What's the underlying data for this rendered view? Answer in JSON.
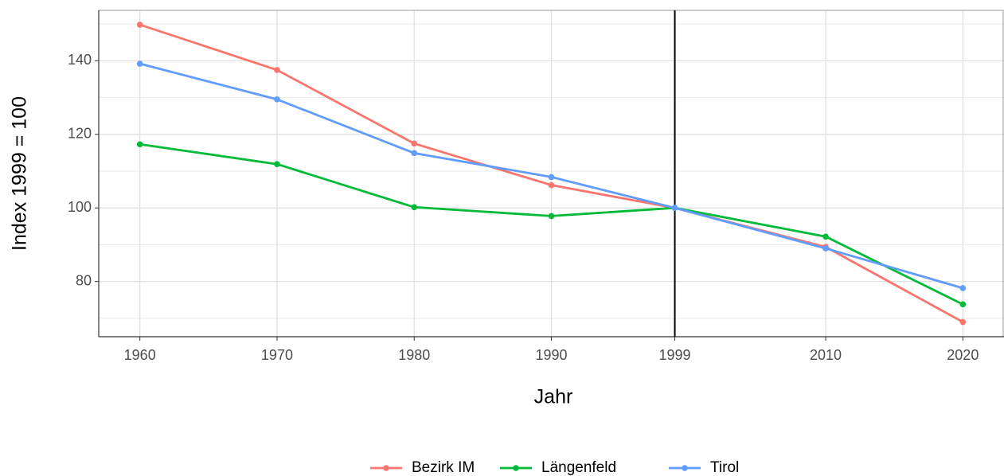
{
  "chart_data": {
    "type": "line",
    "x_label": "Jahr",
    "y_label": "Index 1999 = 100",
    "x": [
      1960,
      1970,
      1980,
      1990,
      1999,
      2010,
      2020
    ],
    "series": [
      {
        "name": "Bezirk IM",
        "color": "#F8766D",
        "values": [
          149.8,
          137.5,
          117.5,
          106.2,
          100,
          89.4,
          69.0
        ]
      },
      {
        "name": "Längenfeld",
        "color": "#00BA38",
        "values": [
          117.3,
          111.9,
          100.2,
          97.8,
          100,
          92.2,
          73.8
        ]
      },
      {
        "name": "Tirol",
        "color": "#619CFF",
        "values": [
          139.2,
          129.5,
          114.9,
          108.4,
          100,
          89.0,
          78.2
        ]
      }
    ],
    "vline": 1999,
    "xlim": [
      1957,
      2023
    ],
    "xticks": [
      1960,
      1970,
      1980,
      1990,
      1999,
      2010,
      2020
    ],
    "ylim": [
      65,
      153.7
    ],
    "yticks": [
      80,
      100,
      120,
      140
    ],
    "minor_yticks": [
      70,
      90,
      110,
      130,
      150
    ],
    "grid": true,
    "legend": "bottom"
  }
}
